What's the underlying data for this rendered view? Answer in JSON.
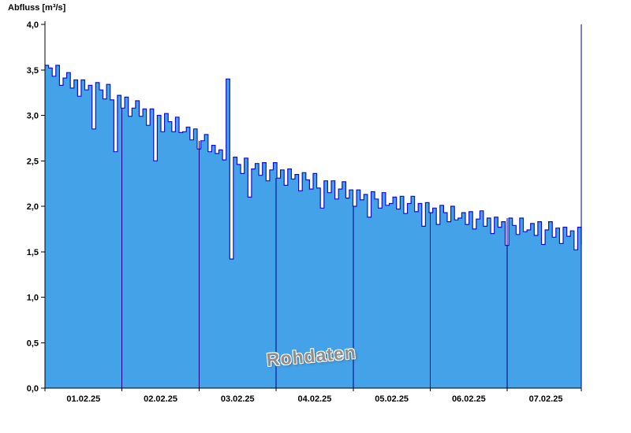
{
  "chart": {
    "title": "Abfluss [m³/s]",
    "watermark": "Rohdaten"
  },
  "colors": {
    "fill": "#44a2e8",
    "line": "#1010cc",
    "grid": "#000080",
    "axis": "#000000",
    "watermark_text": "#8e8e8e"
  },
  "chart_data": {
    "type": "area",
    "title": "Abfluss [m³/s]",
    "xlabel": "",
    "ylabel": "Abfluss [m³/s]",
    "unit": "m³/s",
    "ylim": [
      0,
      4
    ],
    "y_ticks": [
      0,
      0.5,
      1,
      1.5,
      2,
      2.5,
      3,
      3.5,
      4
    ],
    "y_tick_labels": [
      "0,0",
      "0,5",
      "1,0",
      "1,5",
      "2,0",
      "2,5",
      "3,0",
      "3,5",
      "4,0"
    ],
    "x_labels": [
      "01.02.25",
      "02.02.25",
      "03.02.25",
      "04.02.25",
      "05.02.25",
      "06.02.25",
      "07.02.25"
    ],
    "x_start_days": 0,
    "x_end_days": 6.96,
    "day_gridlines": [
      1,
      2,
      3,
      4,
      5,
      6
    ],
    "grid": "vertical-day-lines-inside-fill",
    "legend": "none",
    "annotations": [
      "Rohdaten"
    ],
    "series": [
      {
        "name": "Rohdaten",
        "values": [
          3.55,
          3.52,
          3.43,
          3.55,
          3.33,
          3.41,
          3.47,
          3.3,
          3.39,
          3.21,
          3.39,
          3.28,
          3.33,
          2.85,
          3.36,
          3.28,
          3.18,
          3.34,
          3.17,
          2.6,
          3.22,
          3.08,
          3.2,
          2.99,
          3.08,
          3.16,
          2.99,
          3.07,
          2.89,
          3.07,
          2.5,
          3.0,
          2.82,
          3.02,
          2.93,
          2.82,
          2.98,
          2.81,
          2.82,
          2.87,
          2.73,
          2.85,
          2.63,
          2.72,
          2.79,
          2.6,
          2.67,
          2.58,
          2.62,
          2.51,
          3.4,
          1.42,
          2.54,
          2.46,
          2.36,
          2.53,
          2.1,
          2.41,
          2.47,
          2.34,
          2.48,
          2.28,
          2.4,
          2.48,
          2.31,
          2.4,
          2.23,
          2.41,
          2.3,
          2.35,
          2.17,
          2.37,
          2.29,
          2.19,
          2.36,
          2.2,
          1.98,
          2.28,
          2.15,
          2.28,
          2.08,
          2.19,
          2.27,
          2.09,
          2.18,
          2.0,
          2.18,
          2.07,
          2.13,
          1.88,
          2.16,
          2.08,
          1.98,
          2.15,
          2.01,
          2.03,
          2.1,
          1.97,
          2.11,
          1.92,
          2.03,
          2.11,
          1.94,
          2.03,
          1.78,
          2.04,
          1.93,
          1.98,
          1.8,
          2.01,
          1.93,
          1.83,
          2.0,
          1.85,
          1.87,
          1.93,
          1.8,
          1.94,
          1.75,
          1.86,
          1.95,
          1.78,
          1.87,
          1.7,
          1.88,
          1.77,
          1.83,
          1.57,
          1.87,
          1.79,
          1.69,
          1.87,
          1.72,
          1.74,
          1.81,
          1.68,
          1.83,
          1.58,
          1.74,
          1.83,
          1.66,
          1.76,
          1.59,
          1.77,
          1.67,
          1.73,
          1.52,
          1.77,
          1.58
        ]
      }
    ]
  }
}
